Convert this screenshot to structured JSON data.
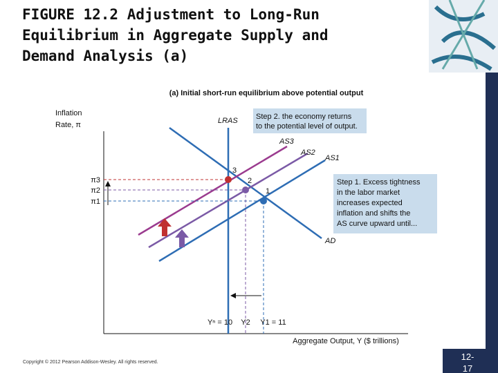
{
  "slide": {
    "title_lines": [
      "FIGURE 12.2  Adjustment to Long-Run",
      "Equilibrium in Aggregate Supply and",
      "Demand Analysis (a)"
    ],
    "figure": {
      "subtitle": "(a) Initial short-run equilibrium above potential output",
      "y_axis_label": [
        "Inflation",
        "Rate, π"
      ],
      "x_axis_label": "Aggregate Output, Y ($ trillions)",
      "curves": {
        "lras": "LRAS",
        "ad": "AD",
        "as1": "AS1",
        "as2": "AS2",
        "as3": "AS3"
      },
      "points": [
        "1",
        "2",
        "3"
      ],
      "y_labels": [
        "π3",
        "π2",
        "π1"
      ],
      "x_labels": [
        "Yⁿ = 10",
        "Y2",
        "Y1 = 11"
      ],
      "step2": [
        "Step 2. the economy returns",
        "to the potential level of output."
      ],
      "step1": [
        "Step 1. Excess tightness",
        "in the labor market",
        "increases expected",
        "inflation and shifts the",
        "AS curve upward until..."
      ]
    },
    "copyright": "Copyright © 2012 Pearson Addison-Wesley. All rights reserved.",
    "page_number": [
      "12-",
      "17"
    ]
  }
}
